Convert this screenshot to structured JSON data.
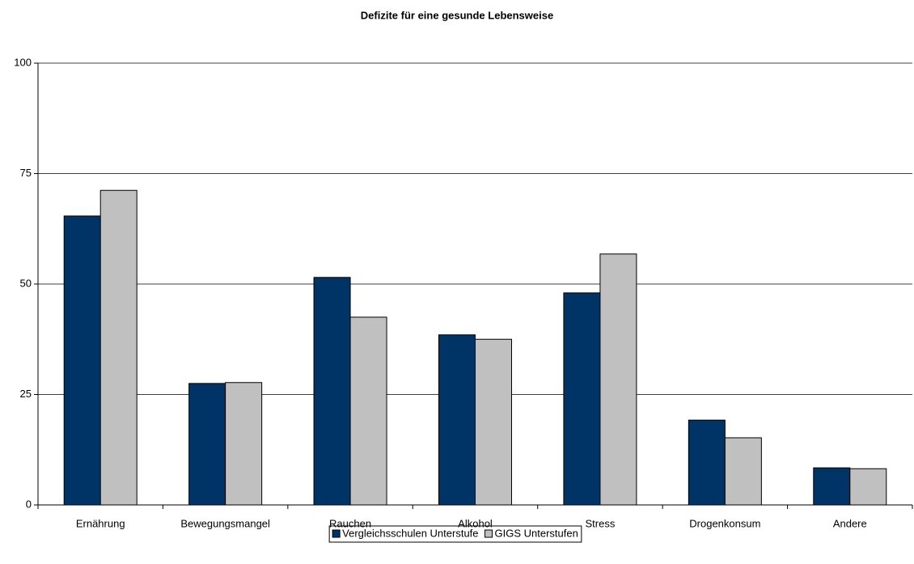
{
  "chart_data": {
    "type": "bar",
    "title": "Defizite für eine gesunde Lebensweise",
    "categories": [
      "Ernährung",
      "Bewegungsmangel",
      "Rauchen",
      "Alkohol",
      "Stress",
      "Drogenkonsum",
      "Andere"
    ],
    "series": [
      {
        "name": "Vergleichsschulen Unterstufe",
        "color": "#003366",
        "values": [
          65.4,
          27.5,
          51.5,
          38.5,
          48.0,
          19.2,
          8.4
        ]
      },
      {
        "name": "GIGS Unterstufen",
        "color": "#c0c0c0",
        "values": [
          71.2,
          27.7,
          42.5,
          37.5,
          56.8,
          15.2,
          8.2
        ]
      }
    ],
    "ylim": [
      0,
      100
    ],
    "yticks": [
      0,
      25,
      50,
      75,
      100
    ],
    "grid": true,
    "legend": "bottom"
  }
}
